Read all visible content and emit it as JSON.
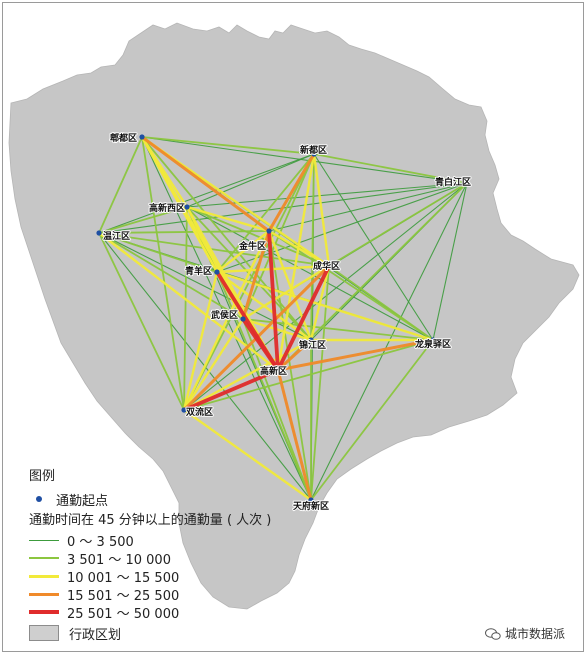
{
  "map": {
    "districts": [
      {
        "id": "pixian",
        "label": "郫都区"
      },
      {
        "id": "xindu",
        "label": "新都区"
      },
      {
        "id": "qingbaijiang",
        "label": "青白江区"
      },
      {
        "id": "gaoxinxi",
        "label": "高新西区"
      },
      {
        "id": "wenjiang",
        "label": "温江区"
      },
      {
        "id": "jinniu",
        "label": "金牛区"
      },
      {
        "id": "qingyang",
        "label": "青羊区"
      },
      {
        "id": "chenghua",
        "label": "成华区"
      },
      {
        "id": "wuhou",
        "label": "武侯区"
      },
      {
        "id": "jinjiang",
        "label": "锦江区"
      },
      {
        "id": "longquanyi",
        "label": "龙泉驿区"
      },
      {
        "id": "gaoxin",
        "label": "高新区"
      },
      {
        "id": "shuangliu",
        "label": "双流区"
      },
      {
        "id": "tianfu",
        "label": "天府新区"
      }
    ],
    "region_color": "#c6c6c6",
    "origin_color": "#1f4fa3"
  },
  "flow_classes": [
    {
      "id": "c1",
      "range": "0 ～ 3 500",
      "color": "#3c9b3c"
    },
    {
      "id": "c2",
      "range": "3 501 ～ 10 000",
      "color": "#8cc63f"
    },
    {
      "id": "c3",
      "range": "10 001 ～ 15 500",
      "color": "#f2ea3a"
    },
    {
      "id": "c4",
      "range": "15 501 ～ 25 500",
      "color": "#f08a2a"
    },
    {
      "id": "c5",
      "range": "25 501 ～ 50 000",
      "color": "#e02c2c"
    }
  ],
  "flows": [
    [
      "pixian",
      "xindu",
      "c2"
    ],
    [
      "pixian",
      "qingbaijiang",
      "c1"
    ],
    [
      "pixian",
      "gaoxin",
      "c3"
    ],
    [
      "pixian",
      "wuhou",
      "c3"
    ],
    [
      "pixian",
      "jinniu",
      "c4"
    ],
    [
      "pixian",
      "chenghua",
      "c3"
    ],
    [
      "pixian",
      "jinjiang",
      "c2"
    ],
    [
      "pixian",
      "longquanyi",
      "c1"
    ],
    [
      "pixian",
      "shuangliu",
      "c2"
    ],
    [
      "pixian",
      "tianfu",
      "c1"
    ],
    [
      "pixian",
      "qingyang",
      "c3"
    ],
    [
      "pixian",
      "wenjiang",
      "c2"
    ],
    [
      "pixian",
      "gaoxinxi",
      "c3"
    ],
    [
      "xindu",
      "jinniu",
      "c4"
    ],
    [
      "xindu",
      "chenghua",
      "c3"
    ],
    [
      "xindu",
      "gaoxin",
      "c3"
    ],
    [
      "xindu",
      "qingbaijiang",
      "c2"
    ],
    [
      "xindu",
      "wuhou",
      "c2"
    ],
    [
      "xindu",
      "jinjiang",
      "c2"
    ],
    [
      "xindu",
      "longquanyi",
      "c1"
    ],
    [
      "xindu",
      "qingyang",
      "c2"
    ],
    [
      "xindu",
      "wenjiang",
      "c1"
    ],
    [
      "xindu",
      "shuangliu",
      "c2"
    ],
    [
      "xindu",
      "gaoxinxi",
      "c1"
    ],
    [
      "xindu",
      "tianfu",
      "c1"
    ],
    [
      "qingbaijiang",
      "jinniu",
      "c1"
    ],
    [
      "qingbaijiang",
      "chenghua",
      "c2"
    ],
    [
      "qingbaijiang",
      "gaoxin",
      "c2"
    ],
    [
      "qingbaijiang",
      "longquanyi",
      "c1"
    ],
    [
      "qingbaijiang",
      "wuhou",
      "c1"
    ],
    [
      "qingbaijiang",
      "jinjiang",
      "c1"
    ],
    [
      "qingbaijiang",
      "shuangliu",
      "c1"
    ],
    [
      "qingbaijiang",
      "tianfu",
      "c1"
    ],
    [
      "qingbaijiang",
      "qingyang",
      "c1"
    ],
    [
      "qingbaijiang",
      "gaoxinxi",
      "c1"
    ],
    [
      "qingbaijiang",
      "wenjiang",
      "c1"
    ],
    [
      "wenjiang",
      "gaoxin",
      "c3"
    ],
    [
      "wenjiang",
      "qingyang",
      "c2"
    ],
    [
      "wenjiang",
      "jinniu",
      "c2"
    ],
    [
      "wenjiang",
      "shuangliu",
      "c2"
    ],
    [
      "wenjiang",
      "wuhou",
      "c2"
    ],
    [
      "wenjiang",
      "chenghua",
      "c2"
    ],
    [
      "wenjiang",
      "tianfu",
      "c1"
    ],
    [
      "wenjiang",
      "jinjiang",
      "c1"
    ],
    [
      "wenjiang",
      "longquanyi",
      "c1"
    ],
    [
      "wenjiang",
      "gaoxinxi",
      "c2"
    ],
    [
      "gaoxinxi",
      "gaoxin",
      "c3"
    ],
    [
      "gaoxinxi",
      "jinniu",
      "c3"
    ],
    [
      "gaoxinxi",
      "qingyang",
      "c2"
    ],
    [
      "gaoxinxi",
      "shuangliu",
      "c2"
    ],
    [
      "gaoxinxi",
      "chenghua",
      "c2"
    ],
    [
      "gaoxinxi",
      "wuhou",
      "c3"
    ],
    [
      "gaoxinxi",
      "longquanyi",
      "c1"
    ],
    [
      "gaoxinxi",
      "jinjiang",
      "c2"
    ],
    [
      "gaoxinxi",
      "tianfu",
      "c1"
    ],
    [
      "jinniu",
      "gaoxin",
      "c5"
    ],
    [
      "jinniu",
      "chenghua",
      "c3"
    ],
    [
      "jinniu",
      "wuhou",
      "c4"
    ],
    [
      "jinniu",
      "qingyang",
      "c3"
    ],
    [
      "jinniu",
      "shuangliu",
      "c3"
    ],
    [
      "jinniu",
      "jinjiang",
      "c3"
    ],
    [
      "jinniu",
      "longquanyi",
      "c2"
    ],
    [
      "jinniu",
      "tianfu",
      "c2"
    ],
    [
      "chenghua",
      "gaoxin",
      "c5"
    ],
    [
      "chenghua",
      "shuangliu",
      "c4"
    ],
    [
      "chenghua",
      "wuhou",
      "c3"
    ],
    [
      "chenghua",
      "longquanyi",
      "c2"
    ],
    [
      "chenghua",
      "jinjiang",
      "c3"
    ],
    [
      "chenghua",
      "qingyang",
      "c3"
    ],
    [
      "chenghua",
      "tianfu",
      "c2"
    ],
    [
      "qingyang",
      "gaoxin",
      "c5"
    ],
    [
      "qingyang",
      "shuangliu",
      "c3"
    ],
    [
      "qingyang",
      "wuhou",
      "c3"
    ],
    [
      "qingyang",
      "jinjiang",
      "c3"
    ],
    [
      "qingyang",
      "longquanyi",
      "c3"
    ],
    [
      "qingyang",
      "tianfu",
      "c2"
    ],
    [
      "wuhou",
      "gaoxin",
      "c5"
    ],
    [
      "wuhou",
      "shuangliu",
      "c3"
    ],
    [
      "wuhou",
      "jinjiang",
      "c3"
    ],
    [
      "wuhou",
      "tianfu",
      "c2"
    ],
    [
      "wuhou",
      "longquanyi",
      "c2"
    ],
    [
      "jinjiang",
      "gaoxin",
      "c4"
    ],
    [
      "jinjiang",
      "longquanyi",
      "c3"
    ],
    [
      "jinjiang",
      "shuangliu",
      "c3"
    ],
    [
      "jinjiang",
      "tianfu",
      "c2"
    ],
    [
      "longquanyi",
      "gaoxin",
      "c4"
    ],
    [
      "longquanyi",
      "shuangliu",
      "c2"
    ],
    [
      "longquanyi",
      "tianfu",
      "c2"
    ],
    [
      "gaoxin",
      "shuangliu",
      "c5"
    ],
    [
      "gaoxin",
      "tianfu",
      "c4"
    ],
    [
      "shuangliu",
      "tianfu",
      "c3"
    ]
  ],
  "legend": {
    "title": "图例",
    "origin_label": "通勤起点",
    "flow_title": "通勤时间在 45 分钟以上的通勤量 ( 人次 )",
    "admin_label": "行政区划"
  },
  "watermark": {
    "text": "城市数据派"
  }
}
